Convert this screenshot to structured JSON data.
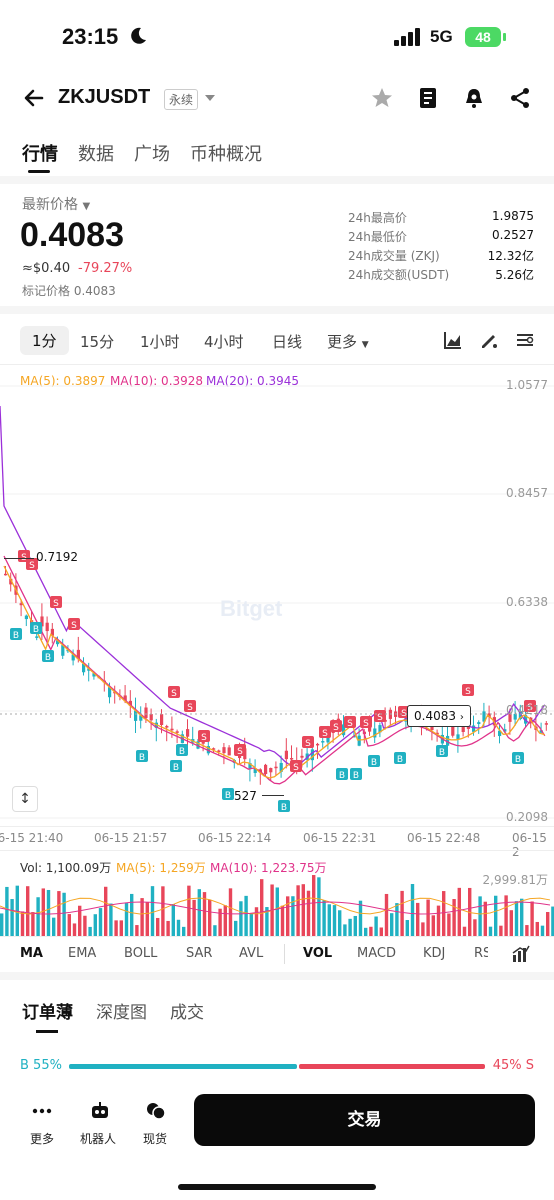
{
  "status": {
    "time": "23:15",
    "network": "5G",
    "battery": "48"
  },
  "header": {
    "symbol": "ZKJUSDT",
    "contract_type": "永续"
  },
  "tabs": [
    "行情",
    "数据",
    "广场",
    "币种概况"
  ],
  "price": {
    "label": "最新价格",
    "last": "0.4083",
    "fiat": "≈$0.40",
    "change": "-79.27%",
    "mark": "标记价格 0.4083"
  },
  "stats": [
    {
      "label": "24h最高价",
      "value": "1.9875"
    },
    {
      "label": "24h最低价",
      "value": "0.2527"
    },
    {
      "label": "24h成交量 (ZKJ)",
      "value": "12.32亿"
    },
    {
      "label": "24h成交额(USDT)",
      "value": "5.26亿"
    }
  ],
  "intervals": [
    "1分",
    "15分",
    "1小时",
    "4小时",
    "日线",
    "更多"
  ],
  "ma_legend": {
    "ma5": "MA(5): 0.3897",
    "ma10": "MA(10): 0.3928",
    "ma20": "MA(20): 0.3945"
  },
  "colors": {
    "up": "#20b1c2",
    "down": "#e8465a",
    "ma5": "#f5a623",
    "ma10": "#e0338a",
    "ma20": "#9b30d9"
  },
  "chart_data": {
    "type": "candlestick",
    "y_axis": [
      "1.0577",
      "0.8457",
      "0.6338",
      "0.4218",
      "0.2098"
    ],
    "x_axis": [
      "06-15 21:40",
      "06-15 21:57",
      "06-15 22:14",
      "06-15 22:31",
      "06-15 22:48",
      "06-15 2"
    ],
    "high_marker": "0.7192",
    "low_marker": "527",
    "current_price_tag": "0.4083",
    "watermark": "Bitget"
  },
  "volume": {
    "vol": "Vol: 1,100.09万",
    "ma5": "MA(5): 1,259万",
    "ma10": "MA(10): 1,223.75万",
    "max": "2,999.81万"
  },
  "indicators": [
    "MA",
    "EMA",
    "BOLL",
    "SAR",
    "AVL",
    "VOL",
    "MACD",
    "KDJ",
    "RS"
  ],
  "orderbook": {
    "tabs": [
      "订单薄",
      "深度图",
      "成交"
    ],
    "buy": "B 55%",
    "sell": "45% S"
  },
  "bottom": {
    "more": "更多",
    "bot": "机器人",
    "spot": "现货",
    "trade": "交易"
  }
}
